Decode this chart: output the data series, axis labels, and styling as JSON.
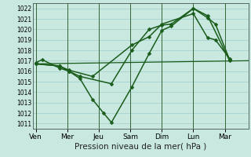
{
  "background_color": "#c8e8e0",
  "plot_bg_color": "#c8e8e0",
  "grid_color": "#a0cccc",
  "line_color": "#1a5c1a",
  "sep_color": "#336633",
  "xlabel": "Pression niveau de la mer( hPa )",
  "xlabel_fontsize": 7.5,
  "ylim": [
    1010.5,
    1022.5
  ],
  "yticks": [
    1011,
    1012,
    1013,
    1014,
    1015,
    1016,
    1017,
    1018,
    1019,
    1020,
    1021,
    1022
  ],
  "ytick_fontsize": 5.5,
  "xtick_labels": [
    "Ven",
    "Mer",
    "Jeu",
    "Sam",
    "Dim",
    "Lun",
    "Mar"
  ],
  "xtick_positions": [
    0,
    2,
    4,
    6,
    8,
    10,
    12
  ],
  "xtick_fontsize": 6.5,
  "xlim": [
    -0.2,
    13.5
  ],
  "series": [
    {
      "x": [
        0.0,
        0.4,
        1.5,
        2.1,
        2.8,
        3.6,
        4.3,
        4.8,
        6.1,
        7.2,
        8.0,
        8.6,
        10.0,
        10.9,
        12.3
      ],
      "y": [
        1016.8,
        1017.1,
        1016.3,
        1016.0,
        1015.3,
        1013.3,
        1012.0,
        1011.1,
        1014.5,
        1017.7,
        1019.9,
        1020.3,
        1022.0,
        1021.3,
        1017.0
      ],
      "marker": "D",
      "markersize": 2.5,
      "linewidth": 1.1
    },
    {
      "x": [
        0.0,
        1.5,
        2.1,
        2.8,
        4.8,
        6.1,
        7.2,
        8.0,
        8.6,
        10.0,
        10.9,
        11.4,
        12.3
      ],
      "y": [
        1016.7,
        1016.5,
        1016.0,
        1015.5,
        1014.8,
        1018.0,
        1020.0,
        1020.4,
        1020.5,
        1022.0,
        1021.1,
        1020.5,
        1017.1
      ],
      "marker": "D",
      "markersize": 2.5,
      "linewidth": 1.1
    },
    {
      "x": [
        0.0,
        13.5
      ],
      "y": [
        1016.7,
        1017.0
      ],
      "marker": null,
      "markersize": 0,
      "linewidth": 0.9
    },
    {
      "x": [
        0.0,
        1.5,
        2.1,
        3.6,
        6.1,
        7.2,
        8.0,
        10.0,
        10.9,
        11.4,
        12.3
      ],
      "y": [
        1016.7,
        1016.5,
        1016.1,
        1015.5,
        1018.5,
        1019.3,
        1020.5,
        1021.5,
        1019.2,
        1019.0,
        1017.2
      ],
      "marker": "D",
      "markersize": 2.5,
      "linewidth": 1.1
    }
  ]
}
